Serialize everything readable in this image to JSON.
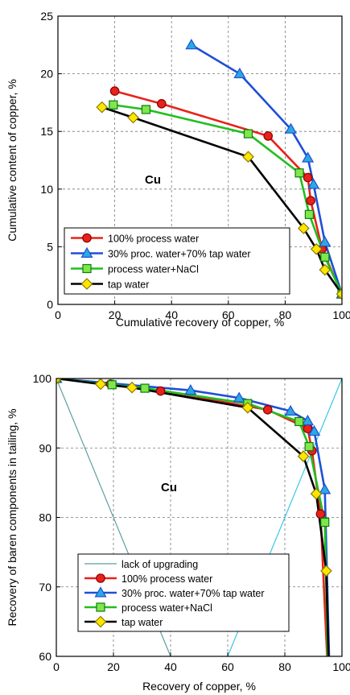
{
  "chart_data": [
    {
      "type": "scatter",
      "title": "",
      "xlabel": "Cumulative recovery of copper, %",
      "ylabel": "Cumulative content of copper, %",
      "annotation": "Cu",
      "xlim": [
        0,
        100
      ],
      "ylim": [
        0,
        25
      ],
      "xticks": [
        "0",
        "20",
        "40",
        "60",
        "80",
        "100"
      ],
      "yticks": [
        "0",
        "5",
        "10",
        "15",
        "20",
        "25"
      ],
      "grid": "dashed",
      "legend_position": "bottom-left",
      "series": [
        {
          "name": "100% process water",
          "color": "#e8221b",
          "marker": "circle",
          "points": [
            [
              20,
              18.5
            ],
            [
              36.5,
              17.4
            ],
            [
              74,
              14.6
            ],
            [
              88,
              11.0
            ],
            [
              89,
              9.0
            ],
            [
              93,
              4.8
            ],
            [
              100,
              0.9
            ]
          ]
        },
        {
          "name": "30% proc. water+70% tap water",
          "color": "#1f4fd6",
          "marker": "triangle",
          "points": [
            [
              47,
              22.5
            ],
            [
              64,
              20.0
            ],
            [
              82,
              15.2
            ],
            [
              88,
              12.7
            ],
            [
              90,
              10.4
            ],
            [
              94,
              5.4
            ],
            [
              100,
              0.9
            ]
          ]
        },
        {
          "name": "process water+NaCl",
          "color": "#1fbf1f",
          "marker": "square",
          "points": [
            [
              19.5,
              17.3
            ],
            [
              31,
              16.9
            ],
            [
              67,
              14.8
            ],
            [
              85,
              11.4
            ],
            [
              88.5,
              7.8
            ],
            [
              94,
              4.1
            ],
            [
              100,
              0.9
            ]
          ]
        },
        {
          "name": "tap water",
          "color": "#000000",
          "marker": "diamond",
          "points": [
            [
              15.5,
              17.1
            ],
            [
              26.5,
              16.2
            ],
            [
              67,
              12.8
            ],
            [
              86.5,
              6.6
            ],
            [
              91,
              4.8
            ],
            [
              94,
              3.0
            ],
            [
              100,
              0.9
            ]
          ]
        }
      ]
    },
    {
      "type": "scatter",
      "title": "",
      "xlabel": "Recovery of copper, %",
      "ylabel": "Recovery of baren components in tailing, %",
      "annotation": "Cu",
      "xlim": [
        0,
        100
      ],
      "ylim": [
        60,
        100
      ],
      "xticks": [
        "0",
        "20",
        "40",
        "60",
        "80",
        "100"
      ],
      "yticks": [
        "60",
        "70",
        "80",
        "90",
        "100"
      ],
      "grid": "dashed",
      "legend_position": "bottom-left",
      "series": [
        {
          "name": "lack of upgrading",
          "color": "#5f9ea0",
          "marker": "none",
          "points": [
            [
              0,
              100
            ],
            [
              40,
              60
            ]
          ]
        },
        {
          "name": "",
          "color": "#38c8e8",
          "marker": "none",
          "points": [
            [
              60,
              60
            ],
            [
              100,
              100
            ]
          ]
        },
        {
          "name": "100% process water",
          "color": "#e8221b",
          "marker": "circle",
          "points": [
            [
              0,
              100
            ],
            [
              19,
              99.2
            ],
            [
              36.5,
              98.2
            ],
            [
              74,
              95.5
            ],
            [
              88,
              92.8
            ],
            [
              89.5,
              89.6
            ],
            [
              92.5,
              80.5
            ],
            [
              94.8,
              60
            ]
          ]
        },
        {
          "name": "30% proc. water+70% tap water",
          "color": "#1f4fd6",
          "marker": "triangle",
          "points": [
            [
              0,
              100
            ],
            [
              47,
              98.3
            ],
            [
              64,
              97.2
            ],
            [
              82,
              95.3
            ],
            [
              88,
              93.9
            ],
            [
              90.3,
              92.4
            ],
            [
              94,
              84.0
            ],
            [
              95.5,
              60
            ]
          ]
        },
        {
          "name": "process water+NaCl",
          "color": "#1fbf1f",
          "marker": "square",
          "points": [
            [
              0,
              100
            ],
            [
              19.5,
              99.1
            ],
            [
              31,
              98.6
            ],
            [
              67,
              96.4
            ],
            [
              85,
              93.8
            ],
            [
              88.5,
              90.2
            ],
            [
              94,
              79.3
            ],
            [
              95,
              60
            ]
          ]
        },
        {
          "name": "tap water",
          "color": "#000000",
          "marker": "diamond",
          "points": [
            [
              0,
              100
            ],
            [
              15.5,
              99.2
            ],
            [
              26.5,
              98.7
            ],
            [
              67,
              95.8
            ],
            [
              86.5,
              88.8
            ],
            [
              91,
              83.4
            ],
            [
              94.5,
              72.3
            ],
            [
              95.3,
              60
            ]
          ]
        }
      ]
    }
  ]
}
